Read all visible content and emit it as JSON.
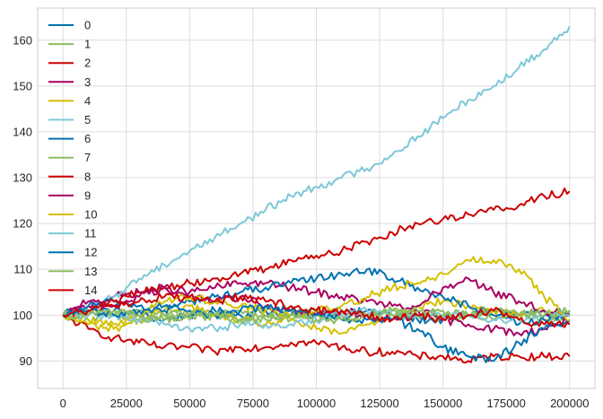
{
  "chart_data": {
    "type": "line",
    "title": "",
    "xlabel": "",
    "ylabel": "",
    "xlim": [
      -10000,
      210000
    ],
    "ylim": [
      84,
      167
    ],
    "x_ticks": [
      0,
      25000,
      50000,
      75000,
      100000,
      125000,
      150000,
      175000,
      200000
    ],
    "x_tick_labels": [
      "0",
      "25000",
      "50000",
      "75000",
      "100000",
      "125000",
      "150000",
      "175000",
      "200000"
    ],
    "y_ticks": [
      90,
      100,
      110,
      120,
      130,
      140,
      150,
      160
    ],
    "y_tick_labels": [
      "90",
      "100",
      "110",
      "120",
      "130",
      "140",
      "150",
      "160"
    ],
    "grid": true,
    "legend_position": "upper-left",
    "x": [
      0,
      10000,
      20000,
      30000,
      40000,
      50000,
      60000,
      70000,
      80000,
      90000,
      100000,
      110000,
      120000,
      130000,
      140000,
      150000,
      160000,
      170000,
      180000,
      190000,
      200000
    ],
    "series": [
      {
        "name": "0",
        "color": "#0072b2",
        "values": [
          100,
          101,
          101,
          100,
          99,
          100,
          101,
          100,
          101,
          100,
          101,
          100,
          101,
          100,
          99,
          99,
          100,
          101,
          100,
          100,
          101
        ]
      },
      {
        "name": "1",
        "color": "#8fbc61",
        "values": [
          100,
          99,
          100,
          101,
          100,
          99,
          100,
          101,
          100,
          99,
          100,
          101,
          100,
          101,
          100,
          99,
          100,
          101,
          100,
          99,
          100
        ]
      },
      {
        "name": "2",
        "color": "#cc0000",
        "values": [
          100,
          97,
          95,
          94,
          93,
          93,
          92,
          93,
          93,
          94,
          94,
          93,
          92,
          92,
          91,
          91,
          90,
          91,
          91,
          91,
          91
        ]
      },
      {
        "name": "3",
        "color": "#a80060",
        "values": [
          100,
          102,
          104,
          105,
          106,
          105,
          106,
          107,
          107,
          106,
          105,
          104,
          103,
          102,
          101,
          99,
          98,
          97,
          96,
          97,
          99
        ]
      },
      {
        "name": "4",
        "color": "#d4c000",
        "values": [
          100,
          98,
          97,
          99,
          101,
          102,
          100,
          99,
          98,
          99,
          97,
          96,
          98,
          100,
          102,
          103,
          102,
          101,
          100,
          101,
          100
        ]
      },
      {
        "name": "5",
        "color": "#7ec8d8",
        "values": [
          100,
          101,
          104,
          108,
          111,
          114,
          117,
          120,
          123,
          126,
          128,
          130,
          132,
          135,
          139,
          143,
          147,
          150,
          154,
          158,
          163
        ]
      },
      {
        "name": "6",
        "color": "#0072b2",
        "values": [
          100,
          102,
          103,
          102,
          101,
          103,
          104,
          105,
          106,
          107,
          108,
          109,
          110,
          108,
          106,
          104,
          102,
          100,
          98,
          99,
          100
        ]
      },
      {
        "name": "7",
        "color": "#8fbc61",
        "values": [
          100,
          101,
          100,
          99,
          100,
          101,
          100,
          99,
          100,
          101,
          100,
          99,
          100,
          101,
          100,
          101,
          100,
          99,
          100,
          101,
          100
        ]
      },
      {
        "name": "8",
        "color": "#cc0000",
        "values": [
          100,
          101,
          103,
          105,
          106,
          107,
          108,
          109,
          110,
          112,
          113,
          114,
          116,
          118,
          120,
          121,
          122,
          123,
          124,
          126,
          127
        ]
      },
      {
        "name": "9",
        "color": "#a80060",
        "values": [
          100,
          103,
          102,
          104,
          106,
          104,
          103,
          104,
          102,
          101,
          100,
          101,
          100,
          99,
          102,
          106,
          108,
          105,
          103,
          101,
          100
        ]
      },
      {
        "name": "10",
        "color": "#d4c000",
        "values": [
          100,
          99,
          98,
          100,
          103,
          104,
          103,
          102,
          101,
          100,
          101,
          102,
          104,
          106,
          107,
          109,
          112,
          112,
          110,
          104,
          99
        ]
      },
      {
        "name": "11",
        "color": "#7ec8d8",
        "values": [
          100,
          100,
          100,
          99,
          98,
          97,
          97,
          98,
          98,
          98,
          99,
          100,
          101,
          100,
          100,
          100,
          100,
          99,
          99,
          100,
          100
        ]
      },
      {
        "name": "12",
        "color": "#0072b2",
        "values": [
          100,
          101,
          100,
          101,
          102,
          101,
          100,
          101,
          102,
          101,
          100,
          99,
          99,
          99,
          97,
          93,
          91,
          90,
          94,
          97,
          98
        ]
      },
      {
        "name": "13",
        "color": "#8fbc61",
        "values": [
          100,
          100,
          101,
          100,
          99,
          100,
          100,
          99,
          99,
          100,
          99,
          99,
          100,
          100,
          101,
          100,
          100,
          101,
          100,
          100,
          101
        ]
      },
      {
        "name": "14",
        "color": "#cc0000",
        "values": [
          100,
          101,
          102,
          103,
          104,
          104,
          103,
          104,
          103,
          102,
          101,
          101,
          100,
          99,
          100,
          99,
          100,
          101,
          99,
          98,
          98
        ]
      }
    ]
  }
}
